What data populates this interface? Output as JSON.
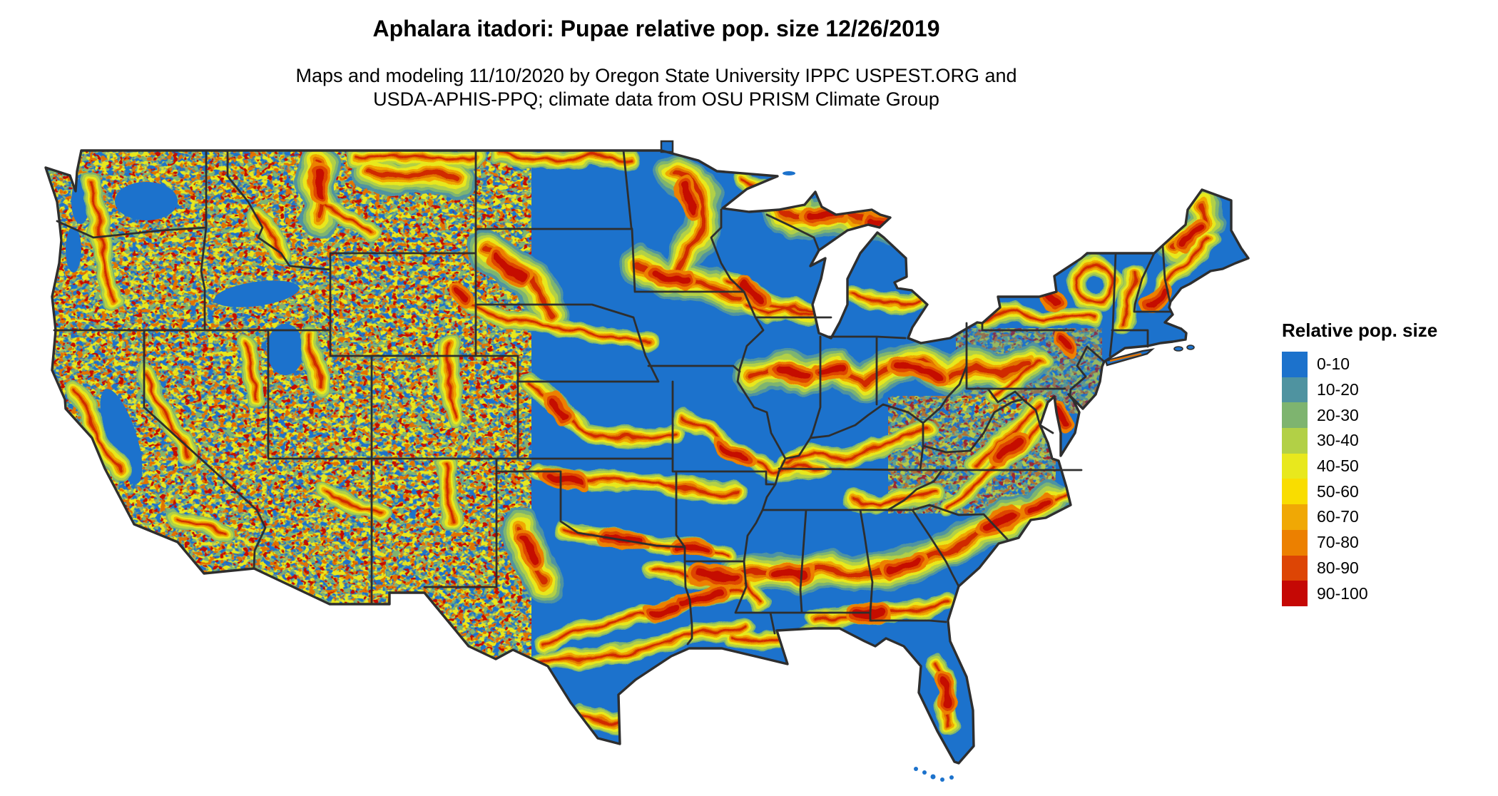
{
  "header": {
    "title": "Aphalara itadori: Pupae relative pop. size 12/26/2019",
    "subtitle_line1": "Maps and modeling 11/10/2020 by Oregon State University IPPC USPEST.ORG and",
    "subtitle_line2": "USDA-APHIS-PPQ; climate data from OSU PRISM Climate Group"
  },
  "legend": {
    "title": "Relative pop. size",
    "bins": [
      {
        "label": "0-10",
        "color": "#1c72cc"
      },
      {
        "label": "10-20",
        "color": "#4f93a0"
      },
      {
        "label": "20-30",
        "color": "#7eb46f"
      },
      {
        "label": "30-40",
        "color": "#b2d046"
      },
      {
        "label": "40-50",
        "color": "#e8e81d"
      },
      {
        "label": "50-60",
        "color": "#f9dd00"
      },
      {
        "label": "60-70",
        "color": "#f0a805"
      },
      {
        "label": "70-80",
        "color": "#ec8000"
      },
      {
        "label": "80-90",
        "color": "#dd4505"
      },
      {
        "label": "90-100",
        "color": "#c50805"
      }
    ]
  },
  "map": {
    "region": "Continental United States",
    "variable": "Relative pop. size",
    "base_color": "#1c72cc",
    "state_border_color": "#2e2e2e",
    "background_color": "#ffffff"
  }
}
